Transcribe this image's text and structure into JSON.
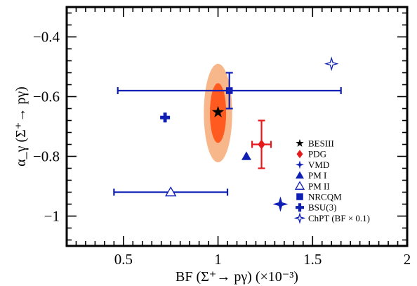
{
  "chart_data": {
    "type": "scatter",
    "xlabel": "BF (Σ⁺→ pγ) (×10⁻³)",
    "ylabel": "α_γ (Σ⁺→ pγ)",
    "xlim": [
      0.2,
      2.0
    ],
    "ylim": [
      -1.1,
      -0.3
    ],
    "x_ticks": [
      0.5,
      1.0,
      1.5,
      2.0
    ],
    "x_tick_labels": [
      "0.5",
      "1",
      "1.5",
      "2"
    ],
    "y_ticks": [
      -1.0,
      -0.8,
      -0.6,
      -0.4
    ],
    "y_tick_labels": [
      "−1",
      "−0.8",
      "−0.6",
      "−0.4"
    ],
    "legend_position": "right",
    "besiii_contours": [
      {
        "level": "outer",
        "center": [
          1.0,
          -0.655
        ],
        "half_width_x": 0.075,
        "half_width_y": 0.165,
        "color": "#f7b78a"
      },
      {
        "level": "inner",
        "center": [
          1.0,
          -0.655
        ],
        "half_width_x": 0.043,
        "half_width_y": 0.1,
        "color": "#ff5a1f"
      }
    ],
    "series": [
      {
        "name": "BESIII",
        "marker": "star5",
        "color": "#000000",
        "points": [
          {
            "x": 1.0,
            "y": -0.652
          }
        ]
      },
      {
        "name": "PDG",
        "marker": "diamond",
        "color": "#e41a1c",
        "points": [
          {
            "x": 1.23,
            "y": -0.76,
            "x_err": 0.05,
            "y_err": 0.08
          }
        ]
      },
      {
        "name": "VMD",
        "marker": "star4",
        "color": "#0f1fb4",
        "points": [
          {
            "x": 1.33,
            "y": -0.96
          }
        ]
      },
      {
        "name": "PM I",
        "marker": "triangle",
        "color": "#0f1fb4",
        "points": [
          {
            "x": 1.15,
            "y": -0.8
          }
        ]
      },
      {
        "name": "PM II",
        "marker": "triangle-open",
        "color": "#0f1fb4",
        "points": [
          {
            "x": 0.75,
            "y": -0.92,
            "x_err": 0.3
          }
        ]
      },
      {
        "name": "NRCQM",
        "marker": "square",
        "color": "#0f1fb4",
        "points": [
          {
            "x": 1.06,
            "y": -0.58,
            "x_err_low": 0.59,
            "x_err_high": 0.59,
            "y_err": 0.06
          }
        ]
      },
      {
        "name": "BSU(3)",
        "marker": "plus",
        "color": "#0f1fb4",
        "points": [
          {
            "x": 0.72,
            "y": -0.67
          }
        ]
      },
      {
        "name": "ChPT (BF × 0.1)",
        "marker": "star4-open",
        "color": "#0f1fb4",
        "points": [
          {
            "x": 1.6,
            "y": -0.49
          }
        ]
      }
    ]
  }
}
